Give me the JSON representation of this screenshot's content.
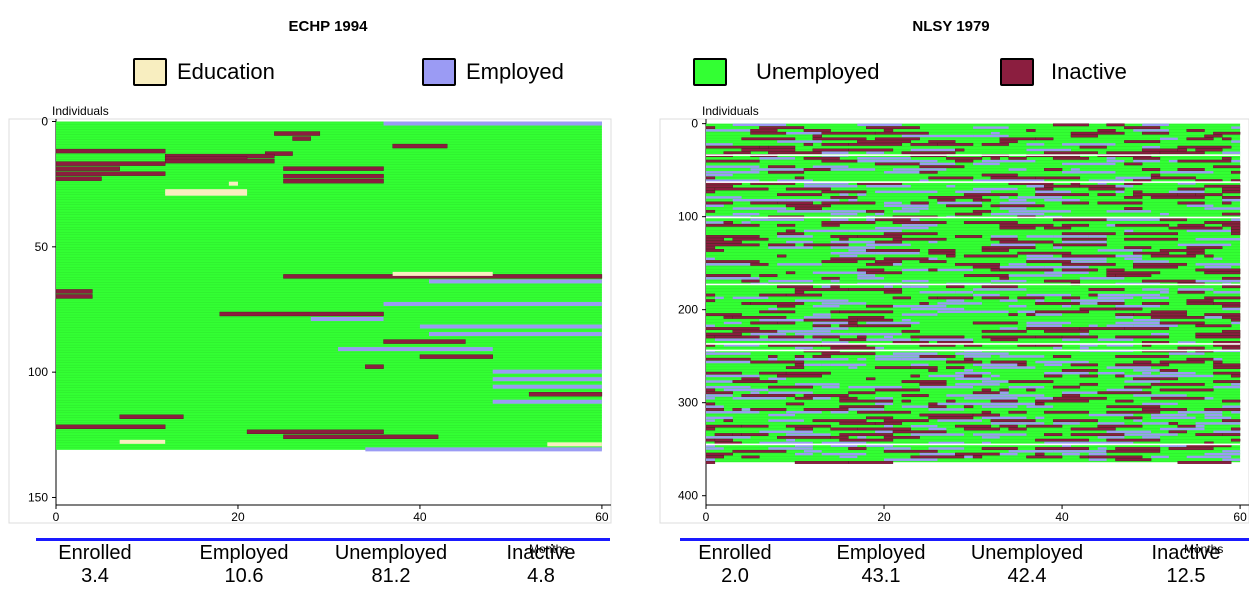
{
  "colors": {
    "education": "#f8eec0",
    "employed": "#9b9bf4",
    "unemployed": "#33ff33",
    "inactive": "#8b1e3f",
    "stats_rule": "#1a1aff"
  },
  "legend": [
    {
      "label": "Education",
      "color_key": "education"
    },
    {
      "label": "Employed",
      "color_key": "employed"
    },
    {
      "label": "Unemployed",
      "color_key": "unemployed"
    },
    {
      "label": "Inactive",
      "color_key": "inactive"
    }
  ],
  "panels": [
    {
      "title": "ECHP 1994",
      "ylabel": "Individuals",
      "xlabel": "Months",
      "stats_labels": [
        "Enrolled",
        "Employed",
        "Unemployed",
        "Inactive"
      ],
      "stats_values": [
        "3.4",
        "10.6",
        "81.2",
        "4.8"
      ]
    },
    {
      "title": "NLSY 1979",
      "ylabel": "Individuals",
      "xlabel": "Months",
      "stats_labels": [
        "Enrolled",
        "Employed",
        "Unemployed",
        "Inactive"
      ],
      "stats_values": [
        "2.0",
        "43.1",
        "42.4",
        "12.5"
      ]
    }
  ],
  "chart_data": [
    {
      "type": "heatmap",
      "title": "ECHP 1994",
      "xlabel": "Months",
      "ylabel": "Individuals",
      "xlim": [
        0,
        61
      ],
      "ylim": [
        153,
        -1
      ],
      "x_ticks": [
        0,
        20,
        40,
        60
      ],
      "y_ticks": [
        0,
        50,
        100,
        150
      ],
      "n_individuals": 131,
      "n_months": 60,
      "background_state": "unemployed",
      "segments": [
        {
          "state": "employed",
          "row": 0,
          "x0": 36,
          "x1": 60
        },
        {
          "state": "employed",
          "row": 0,
          "x0": 58,
          "x1": 60
        },
        {
          "state": "inactive",
          "row": 4,
          "x0": 24,
          "x1": 29
        },
        {
          "state": "inactive",
          "row": 6,
          "x0": 26,
          "x1": 28
        },
        {
          "state": "inactive",
          "row": 9,
          "x0": 37,
          "x1": 43
        },
        {
          "state": "inactive",
          "row": 11,
          "x0": 0,
          "x1": 12
        },
        {
          "state": "inactive",
          "row": 12,
          "x0": 23,
          "x1": 26
        },
        {
          "state": "inactive",
          "row": 13,
          "x0": 12,
          "x1": 24
        },
        {
          "state": "inactive",
          "row": 14,
          "x0": 12,
          "x1": 21
        },
        {
          "state": "inactive",
          "row": 15,
          "x0": 12,
          "x1": 24
        },
        {
          "state": "inactive",
          "row": 16,
          "x0": 0,
          "x1": 12
        },
        {
          "state": "inactive",
          "row": 18,
          "x0": 0,
          "x1": 7
        },
        {
          "state": "inactive",
          "row": 18,
          "x0": 25,
          "x1": 36
        },
        {
          "state": "inactive",
          "row": 20,
          "x0": 0,
          "x1": 12
        },
        {
          "state": "inactive",
          "row": 21,
          "x0": 25,
          "x1": 36
        },
        {
          "state": "inactive",
          "row": 22,
          "x0": 0,
          "x1": 5
        },
        {
          "state": "inactive",
          "row": 23,
          "x0": 25,
          "x1": 36
        },
        {
          "state": "education",
          "row": 24,
          "x0": 19,
          "x1": 20
        },
        {
          "state": "education",
          "row": 27,
          "x0": 12,
          "x1": 21
        },
        {
          "state": "education",
          "row": 28,
          "x0": 12,
          "x1": 21
        },
        {
          "state": "inactive",
          "row": 61,
          "x0": 25,
          "x1": 60
        },
        {
          "state": "education",
          "row": 60,
          "x0": 37,
          "x1": 48
        },
        {
          "state": "employed",
          "row": 63,
          "x0": 41,
          "x1": 60
        },
        {
          "state": "inactive",
          "row": 67,
          "x0": 0,
          "x1": 4
        },
        {
          "state": "inactive",
          "row": 69,
          "x0": 0,
          "x1": 4
        },
        {
          "state": "employed",
          "row": 72,
          "x0": 36,
          "x1": 60
        },
        {
          "state": "inactive",
          "row": 76,
          "x0": 18,
          "x1": 36
        },
        {
          "state": "employed",
          "row": 78,
          "x0": 28,
          "x1": 36
        },
        {
          "state": "employed",
          "row": 81,
          "x0": 40,
          "x1": 60
        },
        {
          "state": "employed",
          "row": 84,
          "x0": 41,
          "x1": 60
        },
        {
          "state": "inactive",
          "row": 87,
          "x0": 36,
          "x1": 45
        },
        {
          "state": "employed",
          "row": 90,
          "x0": 31,
          "x1": 48
        },
        {
          "state": "inactive",
          "row": 93,
          "x0": 40,
          "x1": 48
        },
        {
          "state": "inactive",
          "row": 97,
          "x0": 34,
          "x1": 36
        },
        {
          "state": "employed",
          "row": 99,
          "x0": 48,
          "x1": 60
        },
        {
          "state": "employed",
          "row": 102,
          "x0": 48,
          "x1": 60
        },
        {
          "state": "employed",
          "row": 105,
          "x0": 48,
          "x1": 60
        },
        {
          "state": "inactive",
          "row": 108,
          "x0": 52,
          "x1": 60
        },
        {
          "state": "employed",
          "row": 111,
          "x0": 48,
          "x1": 60
        },
        {
          "state": "inactive",
          "row": 117,
          "x0": 7,
          "x1": 14
        },
        {
          "state": "inactive",
          "row": 121,
          "x0": 0,
          "x1": 12
        },
        {
          "state": "inactive",
          "row": 123,
          "x0": 21,
          "x1": 36
        },
        {
          "state": "inactive",
          "row": 125,
          "x0": 25,
          "x1": 42
        },
        {
          "state": "education",
          "row": 127,
          "x0": 7,
          "x1": 12
        },
        {
          "state": "education",
          "row": 128,
          "x0": 54,
          "x1": 60
        },
        {
          "state": "employed",
          "row": 130,
          "x0": 34,
          "x1": 60
        }
      ]
    },
    {
      "type": "heatmap",
      "title": "NLSY 1979",
      "xlabel": "Months",
      "ylabel": "Individuals",
      "xlim": [
        0,
        61
      ],
      "ylim": [
        410,
        -5
      ],
      "x_ticks": [
        0,
        20,
        40,
        60
      ],
      "y_ticks": [
        0,
        100,
        200,
        300,
        400
      ],
      "n_individuals": 364,
      "n_months": 60,
      "background_state": "unemployed",
      "pattern": "dense mix of employed and inactive spells across all rows",
      "white_rows": [
        33,
        62,
        100,
        172,
        236,
        243,
        344
      ]
    }
  ]
}
